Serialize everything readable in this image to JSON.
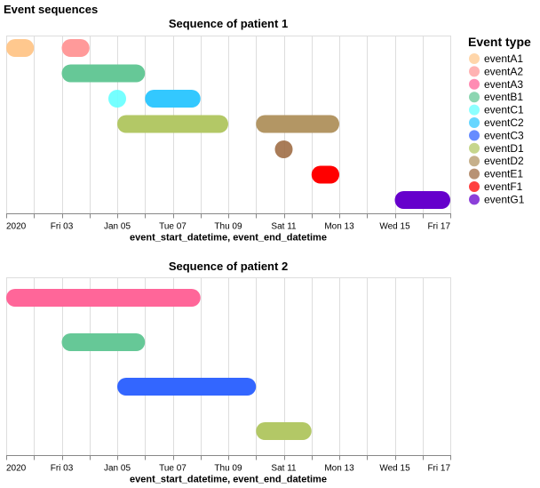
{
  "title": "Event sequences",
  "legend": {
    "title": "Event type",
    "items": [
      {
        "label": "eventA1",
        "color": "#ffc88e"
      },
      {
        "label": "eventA2",
        "color": "#ff9a9a"
      },
      {
        "label": "eventA3",
        "color": "#ff6699"
      },
      {
        "label": "eventB1",
        "color": "#66c897"
      },
      {
        "label": "eventC1",
        "color": "#66ffff"
      },
      {
        "label": "eventC2",
        "color": "#33c8ff"
      },
      {
        "label": "eventC3",
        "color": "#3366ff"
      },
      {
        "label": "eventD1",
        "color": "#b3c866"
      },
      {
        "label": "eventD2",
        "color": "#b39664"
      },
      {
        "label": "eventE1",
        "color": "#a06e46"
      },
      {
        "label": "eventF1",
        "color": "#ff0000"
      },
      {
        "label": "eventG1",
        "color": "#6600cc"
      }
    ]
  },
  "chart_data": [
    {
      "type": "gantt",
      "title": "Sequence of patient 1",
      "xlabel": "event_start_datetime, event_end_datetime",
      "x_domain": [
        "2020-01-01",
        "2020-01-17"
      ],
      "tick_labels": [
        {
          "date": "2020-01-01",
          "label": "2020"
        },
        {
          "date": "2020-01-03",
          "label": "Fri 03"
        },
        {
          "date": "2020-01-05",
          "label": "Jan 05"
        },
        {
          "date": "2020-01-07",
          "label": "Tue 07"
        },
        {
          "date": "2020-01-09",
          "label": "Thu 09"
        },
        {
          "date": "2020-01-11",
          "label": "Sat 11"
        },
        {
          "date": "2020-01-13",
          "label": "Mon 13"
        },
        {
          "date": "2020-01-15",
          "label": "Wed 15"
        },
        {
          "date": "2020-01-17",
          "label": "Fri 17"
        }
      ],
      "rows": 7,
      "events": [
        {
          "event": "eventA1",
          "row": 0,
          "start": "2020-01-01",
          "end": "2020-01-02"
        },
        {
          "event": "eventA2",
          "row": 0,
          "start": "2020-01-03",
          "end": "2020-01-04"
        },
        {
          "event": "eventB1",
          "row": 1,
          "start": "2020-01-03",
          "end": "2020-01-06"
        },
        {
          "event": "eventC1",
          "row": 2,
          "start": "2020-01-05",
          "end": "2020-01-05"
        },
        {
          "event": "eventC2",
          "row": 2,
          "start": "2020-01-06",
          "end": "2020-01-08"
        },
        {
          "event": "eventD1",
          "row": 3,
          "start": "2020-01-05",
          "end": "2020-01-09"
        },
        {
          "event": "eventD2",
          "row": 3,
          "start": "2020-01-10",
          "end": "2020-01-13"
        },
        {
          "event": "eventE1",
          "row": 4,
          "start": "2020-01-11",
          "end": "2020-01-11"
        },
        {
          "event": "eventF1",
          "row": 5,
          "start": "2020-01-12",
          "end": "2020-01-13"
        },
        {
          "event": "eventG1",
          "row": 6,
          "start": "2020-01-15",
          "end": "2020-01-17"
        }
      ]
    },
    {
      "type": "gantt",
      "title": "Sequence of patient 2",
      "xlabel": "event_start_datetime, event_end_datetime",
      "x_domain": [
        "2020-01-01",
        "2020-01-17"
      ],
      "tick_labels": [
        {
          "date": "2020-01-01",
          "label": "2020"
        },
        {
          "date": "2020-01-03",
          "label": "Fri 03"
        },
        {
          "date": "2020-01-05",
          "label": "Jan 05"
        },
        {
          "date": "2020-01-07",
          "label": "Tue 07"
        },
        {
          "date": "2020-01-09",
          "label": "Thu 09"
        },
        {
          "date": "2020-01-11",
          "label": "Sat 11"
        },
        {
          "date": "2020-01-13",
          "label": "Mon 13"
        },
        {
          "date": "2020-01-15",
          "label": "Wed 15"
        },
        {
          "date": "2020-01-17",
          "label": "Fri 17"
        }
      ],
      "rows": 4,
      "events": [
        {
          "event": "eventA3",
          "row": 0,
          "start": "2020-01-01",
          "end": "2020-01-08"
        },
        {
          "event": "eventB1",
          "row": 1,
          "start": "2020-01-03",
          "end": "2020-01-06"
        },
        {
          "event": "eventC3",
          "row": 2,
          "start": "2020-01-05",
          "end": "2020-01-10"
        },
        {
          "event": "eventD1",
          "row": 3,
          "start": "2020-01-10",
          "end": "2020-01-12"
        }
      ]
    }
  ]
}
